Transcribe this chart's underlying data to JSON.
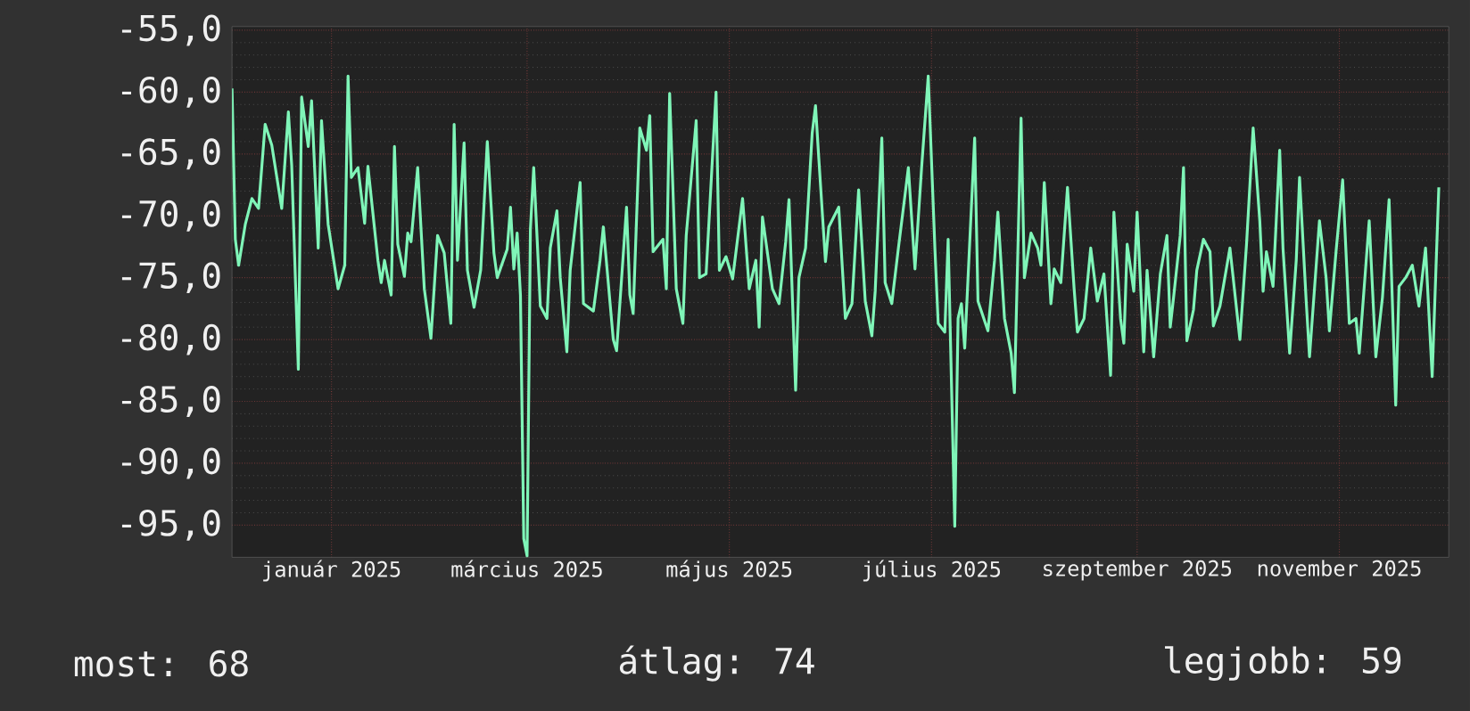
{
  "chart_data": {
    "type": "line",
    "color": "#7ff5b8",
    "x": [
      "2024-12-16",
      "2024-12-17",
      "2024-12-18",
      "2024-12-20",
      "2024-12-22",
      "2024-12-24",
      "2024-12-26",
      "2024-12-28",
      "2024-12-31",
      "2025-01-02",
      "2025-01-03",
      "2025-01-05",
      "2025-01-06",
      "2025-01-08",
      "2025-01-09",
      "2025-01-11",
      "2025-01-12",
      "2025-01-14",
      "2025-01-17",
      "2025-01-19",
      "2025-01-20",
      "2025-01-21",
      "2025-01-23",
      "2025-01-25",
      "2025-01-26",
      "2025-01-29",
      "2025-01-30",
      "2025-01-31",
      "2025-02-02",
      "2025-02-03",
      "2025-02-04",
      "2025-02-06",
      "2025-02-07",
      "2025-02-08",
      "2025-02-10",
      "2025-02-12",
      "2025-02-14",
      "2025-02-16",
      "2025-02-18",
      "2025-02-20",
      "2025-02-21",
      "2025-02-22",
      "2025-02-24",
      "2025-02-25",
      "2025-02-27",
      "2025-03-01",
      "2025-03-03",
      "2025-03-05",
      "2025-03-06",
      "2025-03-09",
      "2025-03-10",
      "2025-03-11",
      "2025-03-12",
      "2025-03-13",
      "2025-03-14",
      "2025-03-15",
      "2025-03-16",
      "2025-03-17",
      "2025-03-19",
      "2025-03-21",
      "2025-03-22",
      "2025-03-24",
      "2025-03-25",
      "2025-03-27",
      "2025-03-28",
      "2025-03-31",
      "2025-04-01",
      "2025-04-04",
      "2025-04-06",
      "2025-04-07",
      "2025-04-10",
      "2025-04-11",
      "2025-04-14",
      "2025-04-15",
      "2025-04-16",
      "2025-04-18",
      "2025-04-20",
      "2025-04-21",
      "2025-04-22",
      "2025-04-25",
      "2025-04-26",
      "2025-04-27",
      "2025-04-28",
      "2025-04-29",
      "2025-05-01",
      "2025-05-02",
      "2025-05-05",
      "2025-05-06",
      "2025-05-08",
      "2025-05-11",
      "2025-05-12",
      "2025-05-14",
      "2025-05-16",
      "2025-05-19",
      "2025-05-21",
      "2025-05-23",
      "2025-05-24",
      "2025-05-25",
      "2025-05-28",
      "2025-05-30",
      "2025-06-01",
      "2025-06-02",
      "2025-06-04",
      "2025-06-05",
      "2025-06-07",
      "2025-06-09",
      "2025-06-10",
      "2025-06-11",
      "2025-06-13",
      "2025-06-14",
      "2025-06-17",
      "2025-06-19",
      "2025-06-21",
      "2025-06-23",
      "2025-06-25",
      "2025-06-27",
      "2025-06-28",
      "2025-06-30",
      "2025-07-01",
      "2025-07-03",
      "2025-07-05",
      "2025-07-07",
      "2025-07-08",
      "2025-07-10",
      "2025-07-12",
      "2025-07-14",
      "2025-07-16",
      "2025-07-17",
      "2025-07-19",
      "2025-07-20",
      "2025-07-22",
      "2025-07-23",
      "2025-07-24",
      "2025-07-25",
      "2025-07-28",
      "2025-07-29",
      "2025-08-01",
      "2025-08-03",
      "2025-08-04",
      "2025-08-06",
      "2025-08-08",
      "2025-08-09",
      "2025-08-11",
      "2025-08-12",
      "2025-08-14",
      "2025-08-16",
      "2025-08-17",
      "2025-08-18",
      "2025-08-20",
      "2025-08-21",
      "2025-08-23",
      "2025-08-25",
      "2025-08-27",
      "2025-08-28",
      "2025-08-30",
      "2025-09-01",
      "2025-09-03",
      "2025-09-05",
      "2025-09-07",
      "2025-09-08",
      "2025-09-10",
      "2025-09-11",
      "2025-09-12",
      "2025-09-14",
      "2025-09-15",
      "2025-09-17",
      "2025-09-18",
      "2025-09-20",
      "2025-09-22",
      "2025-09-24",
      "2025-09-25",
      "2025-09-26",
      "2025-09-28",
      "2025-09-29",
      "2025-09-30",
      "2025-10-02",
      "2025-10-03",
      "2025-10-05",
      "2025-10-07",
      "2025-10-08",
      "2025-10-10",
      "2025-10-13",
      "2025-10-16",
      "2025-10-18",
      "2025-10-20",
      "2025-10-22",
      "2025-10-23",
      "2025-10-24",
      "2025-10-26",
      "2025-10-28",
      "2025-10-29",
      "2025-10-31",
      "2025-11-02",
      "2025-11-03",
      "2025-11-05",
      "2025-11-06",
      "2025-11-09",
      "2025-11-11",
      "2025-11-12",
      "2025-11-14",
      "2025-11-16",
      "2025-11-18",
      "2025-11-20",
      "2025-11-21",
      "2025-11-24",
      "2025-11-26",
      "2025-11-28",
      "2025-11-30",
      "2025-12-02",
      "2025-12-03",
      "2025-12-05",
      "2025-12-07",
      "2025-12-09",
      "2025-12-11",
      "2025-12-13",
      "2025-12-15"
    ],
    "values": [
      -59.7,
      -71.9,
      -74.0,
      -70.7,
      -68.6,
      -69.4,
      -62.6,
      -64.3,
      -69.4,
      -61.6,
      -65.9,
      -82.4,
      -60.4,
      -64.4,
      -60.7,
      -72.6,
      -62.3,
      -70.7,
      -75.9,
      -74.0,
      -58.7,
      -66.9,
      -66.1,
      -70.6,
      -66.0,
      -73.6,
      -75.4,
      -73.6,
      -76.4,
      -64.4,
      -72.3,
      -74.9,
      -71.4,
      -72.1,
      -66.1,
      -75.9,
      -79.9,
      -71.6,
      -73.0,
      -78.7,
      -62.6,
      -73.6,
      -64.1,
      -74.4,
      -77.4,
      -74.4,
      -64.0,
      -73.0,
      -75.0,
      -72.7,
      -69.3,
      -74.3,
      -71.4,
      -76.4,
      -96.1,
      -97.5,
      -71.1,
      -66.1,
      -77.3,
      -78.3,
      -72.6,
      -69.6,
      -75.0,
      -81.0,
      -74.4,
      -67.3,
      -77.1,
      -77.7,
      -73.6,
      -70.9,
      -80.0,
      -80.9,
      -69.3,
      -76.4,
      -77.9,
      -62.9,
      -64.7,
      -61.9,
      -72.9,
      -71.9,
      -75.9,
      -60.1,
      -67.9,
      -75.9,
      -78.7,
      -71.6,
      -62.3,
      -75.0,
      -74.7,
      -60.0,
      -74.4,
      -73.3,
      -75.1,
      -68.6,
      -75.9,
      -73.6,
      -79.0,
      -70.1,
      -75.9,
      -77.1,
      -72.1,
      -68.7,
      -84.1,
      -75.0,
      -72.6,
      -63.3,
      -61.1,
      -65.4,
      -73.7,
      -70.9,
      -69.3,
      -78.3,
      -77.1,
      -67.9,
      -76.9,
      -79.7,
      -76.1,
      -63.7,
      -75.4,
      -77.1,
      -72.6,
      -68.3,
      -66.1,
      -74.3,
      -66.1,
      -58.7,
      -72.6,
      -78.7,
      -79.4,
      -71.9,
      -95.1,
      -78.3,
      -77.1,
      -80.7,
      -63.7,
      -76.9,
      -79.3,
      -73.6,
      -69.7,
      -78.3,
      -81.1,
      -84.3,
      -62.1,
      -75.0,
      -71.4,
      -72.6,
      -74.0,
      -67.3,
      -77.1,
      -74.3,
      -75.4,
      -67.7,
      -75.9,
      -79.4,
      -78.3,
      -72.6,
      -76.9,
      -74.7,
      -82.9,
      -69.7,
      -78.3,
      -80.3,
      -72.3,
      -76.1,
      -69.7,
      -81.0,
      -74.4,
      -81.4,
      -74.7,
      -71.6,
      -79.0,
      -76.6,
      -71.6,
      -66.1,
      -80.1,
      -77.6,
      -74.4,
      -71.9,
      -72.9,
      -78.9,
      -77.3,
      -72.6,
      -80.0,
      -72.3,
      -62.9,
      -70.4,
      -76.1,
      -72.9,
      -75.7,
      -64.7,
      -72.6,
      -81.1,
      -73.6,
      -66.9,
      -76.9,
      -81.4,
      -70.4,
      -75.0,
      -79.3,
      -72.9,
      -67.1,
      -78.7,
      -78.3,
      -81.1,
      -70.4,
      -81.4,
      -76.6,
      -68.7,
      -85.3,
      -75.7,
      -75.0,
      -74.0,
      -77.3,
      -72.6,
      -83.0,
      -67.7
    ],
    "xlim": [
      "2024-12-16",
      "2025-12-18"
    ],
    "xticks": [
      {
        "value": "2025-01-15",
        "label": "január 2025"
      },
      {
        "value": "2025-03-15",
        "label": "március 2025"
      },
      {
        "value": "2025-05-15",
        "label": "május 2025"
      },
      {
        "value": "2025-07-15",
        "label": "július 2025"
      },
      {
        "value": "2025-09-15",
        "label": "szeptember 2025"
      },
      {
        "value": "2025-11-15",
        "label": "november 2025"
      }
    ],
    "ylim": [
      -97.6,
      -54.7
    ],
    "yticks": [
      {
        "value": -55,
        "label": "-55,0"
      },
      {
        "value": -60,
        "label": "-60,0"
      },
      {
        "value": -65,
        "label": "-65,0"
      },
      {
        "value": -70,
        "label": "-70,0"
      },
      {
        "value": -75,
        "label": "-75,0"
      },
      {
        "value": -80,
        "label": "-80,0"
      },
      {
        "value": -85,
        "label": "-85,0"
      },
      {
        "value": -90,
        "label": "-90,0"
      },
      {
        "value": -95,
        "label": "-95,0"
      }
    ],
    "grid": true,
    "annotations": [
      "most: 68",
      "átlag: 74",
      "legjobb: 59"
    ]
  }
}
